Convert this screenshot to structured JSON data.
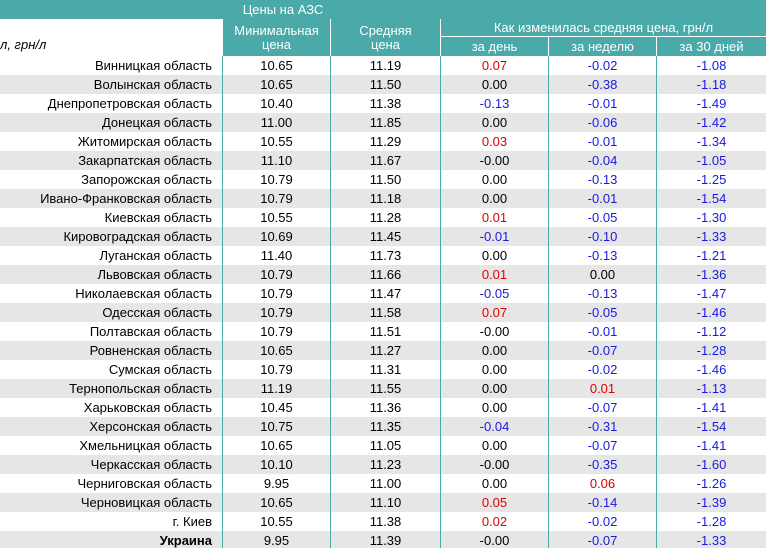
{
  "header": {
    "title": "Цены на АЗС",
    "unit_fragment": "л, грн/л",
    "min_price": "Минимальная цена",
    "avg_price": "Средняя цена",
    "change": "Как изменилась средняя цена, грн/л",
    "day": "за день",
    "week": "за неделю",
    "month": "за 30 дней"
  },
  "table": {
    "rows": [
      [
        "Винницкая область",
        "10.65",
        "11.19",
        "0.07",
        "-0.02",
        "-1.08"
      ],
      [
        "Волынская область",
        "10.65",
        "11.50",
        "0.00",
        "-0.38",
        "-1.18"
      ],
      [
        "Днепропетровская область",
        "10.40",
        "11.38",
        "-0.13",
        "-0.01",
        "-1.49"
      ],
      [
        "Донецкая область",
        "11.00",
        "11.85",
        "0.00",
        "-0.06",
        "-1.42"
      ],
      [
        "Житомирская область",
        "10.55",
        "11.29",
        "0.03",
        "-0.01",
        "-1.34"
      ],
      [
        "Закарпатская область",
        "11.10",
        "11.67",
        "-0.00",
        "-0.04",
        "-1.05"
      ],
      [
        "Запорожская область",
        "10.79",
        "11.50",
        "0.00",
        "-0.13",
        "-1.25"
      ],
      [
        "Ивано-Франковская область",
        "10.79",
        "11.18",
        "0.00",
        "-0.01",
        "-1.54"
      ],
      [
        "Киевская область",
        "10.55",
        "11.28",
        "0.01",
        "-0.05",
        "-1.30"
      ],
      [
        "Кировоградская область",
        "10.69",
        "11.45",
        "-0.01",
        "-0.10",
        "-1.33"
      ],
      [
        "Луганская область",
        "11.40",
        "11.73",
        "0.00",
        "-0.13",
        "-1.21"
      ],
      [
        "Львовская область",
        "10.79",
        "11.66",
        "0.01",
        "0.00",
        "-1.36"
      ],
      [
        "Николаевская область",
        "10.79",
        "11.47",
        "-0.05",
        "-0.13",
        "-1.47"
      ],
      [
        "Одесская область",
        "10.79",
        "11.58",
        "0.07",
        "-0.05",
        "-1.46"
      ],
      [
        "Полтавская область",
        "10.79",
        "11.51",
        "-0.00",
        "-0.01",
        "-1.12"
      ],
      [
        "Ровненская область",
        "10.65",
        "11.27",
        "0.00",
        "-0.07",
        "-1.28"
      ],
      [
        "Сумская область",
        "10.79",
        "11.31",
        "0.00",
        "-0.02",
        "-1.46"
      ],
      [
        "Тернопольская область",
        "11.19",
        "11.55",
        "0.00",
        "0.01",
        "-1.13"
      ],
      [
        "Харьковская область",
        "10.45",
        "11.36",
        "0.00",
        "-0.07",
        "-1.41"
      ],
      [
        "Херсонская область",
        "10.75",
        "11.35",
        "-0.04",
        "-0.31",
        "-1.54"
      ],
      [
        "Хмельницкая область",
        "10.65",
        "11.05",
        "0.00",
        "-0.07",
        "-1.41"
      ],
      [
        "Черкасская область",
        "10.10",
        "11.23",
        "-0.00",
        "-0.35",
        "-1.60"
      ],
      [
        "Черниговская область",
        "9.95",
        "11.00",
        "0.00",
        "0.06",
        "-1.26"
      ],
      [
        "Черновицкая область",
        "10.65",
        "11.10",
        "0.05",
        "-0.14",
        "-1.39"
      ],
      [
        "г. Киев",
        "10.55",
        "11.38",
        "0.02",
        "-0.02",
        "-1.28"
      ],
      [
        "Украина",
        "9.95",
        "11.39",
        "-0.00",
        "-0.07",
        "-1.33"
      ]
    ]
  }
}
